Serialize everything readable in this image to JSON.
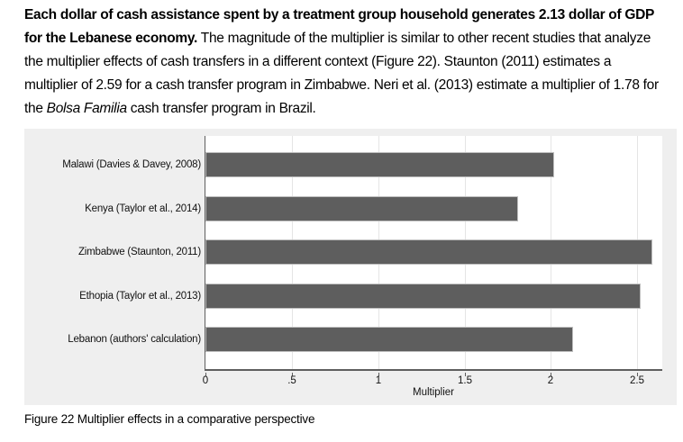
{
  "paragraph": {
    "bold": "Each dollar of cash assistance spent by a treatment group household generates 2.13 dollar of GDP for the Lebanese economy.",
    "regular_1": " The magnitude of the multiplier is similar to other recent studies that analyze the multiplier effects of cash transfers in a different context (Figure 22). Staunton (2011) estimates a multiplier of 2.59 for a cash transfer program in Zimbabwe. Neri et al. (2013) estimate a multiplier of 1.78 for the ",
    "italic": "Bolsa Familia",
    "regular_2": " cash transfer program in Brazil."
  },
  "chart_data": {
    "type": "bar",
    "orientation": "horizontal",
    "categories": [
      "Malawi (Davies & Davey, 2008)",
      "Kenya (Taylor et al., 2014)",
      "Zimbabwe (Staunton, 2011)",
      "Ethopia (Taylor et al., 2013)",
      "Lebanon (authors' calculation)"
    ],
    "values": [
      2.02,
      1.81,
      2.59,
      2.52,
      2.13
    ],
    "title": "",
    "xlabel": "Multiplier",
    "ylabel": "",
    "xlim": [
      0,
      2.65
    ],
    "xticks": [
      0,
      0.5,
      1,
      1.5,
      2,
      2.5
    ],
    "xtick_labels": [
      "0",
      ".5",
      "1",
      "1.5",
      "2",
      "2.5"
    ],
    "grid": true,
    "legend": false,
    "bar_color": "#5e5e5e",
    "bar_border_color": "#bdbdbd",
    "panel_background": "#efefef",
    "plot_background": "#ffffff",
    "gridline_color": "#e5e5e5",
    "axis_color": "#5e5e5e"
  },
  "caption": "Figure 22 Multiplier effects in a comparative perspective"
}
